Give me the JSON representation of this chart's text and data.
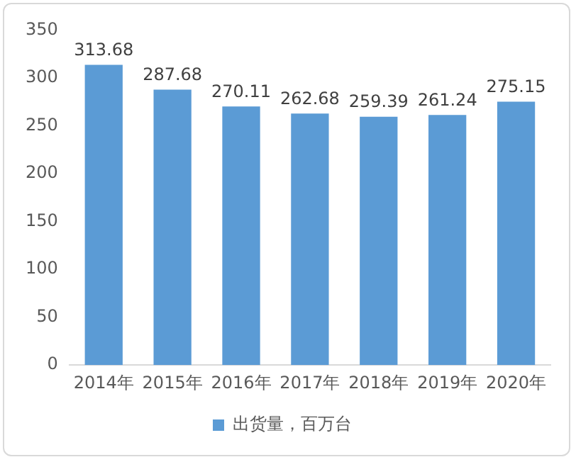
{
  "chart_data": {
    "type": "bar",
    "categories": [
      "2014年",
      "2015年",
      "2016年",
      "2017年",
      "2018年",
      "2019年",
      "2020年"
    ],
    "series": [
      {
        "name": "出货量，百万台",
        "color": "#5b9bd5",
        "values": [
          313.68,
          287.68,
          270.11,
          262.68,
          259.39,
          261.24,
          275.15
        ]
      }
    ],
    "ylim": [
      0,
      350
    ],
    "yticks": [
      0,
      50,
      100,
      150,
      200,
      250,
      300,
      350
    ],
    "data_labels": true,
    "legend": "bottom",
    "grid": false
  }
}
